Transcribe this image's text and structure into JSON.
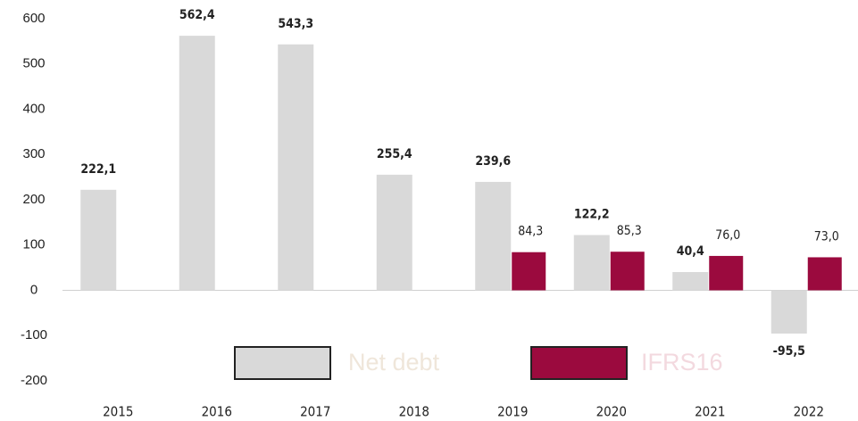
{
  "chart_data": {
    "type": "bar",
    "categories": [
      "2015",
      "2016",
      "2017",
      "2018",
      "2019",
      "2020",
      "2021",
      "2022"
    ],
    "series": [
      {
        "name": "Net debt",
        "color": "#d9d9d9",
        "values": [
          222.1,
          562.4,
          543.3,
          255.4,
          239.6,
          122.2,
          40.4,
          -95.5
        ],
        "value_labels": [
          "222,1",
          "562,4",
          "543,3",
          "255,4",
          "239,6",
          "122,2",
          "40,4",
          "-95,5"
        ]
      },
      {
        "name": "IFRS16",
        "color": "#9b0a3e",
        "values": [
          null,
          null,
          null,
          null,
          84.3,
          85.3,
          76.0,
          73.0
        ],
        "value_labels": [
          null,
          null,
          null,
          null,
          "84,3",
          "85,3",
          "76,0",
          "73,0"
        ]
      }
    ],
    "ylim": [
      -200,
      600
    ],
    "yticks": [
      -200,
      -100,
      0,
      100,
      200,
      300,
      400,
      500,
      600
    ],
    "grid": false
  }
}
